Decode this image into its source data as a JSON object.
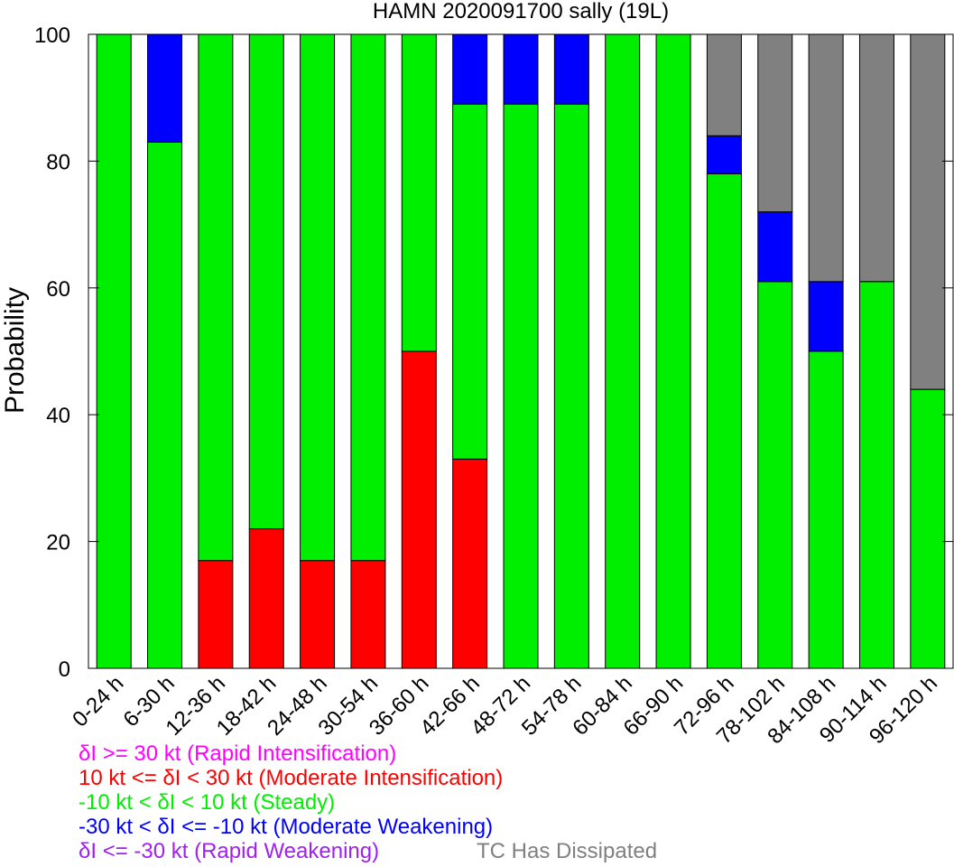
{
  "chart_data": {
    "type": "bar",
    "stacked": true,
    "title": "HAMN 2020091700 sally (19L)",
    "xlabel": "",
    "ylabel": "Probability",
    "ylim": [
      0,
      100
    ],
    "yticks": [
      0,
      20,
      40,
      60,
      80,
      100
    ],
    "grid": false,
    "categories": [
      "0-24 h",
      "6-30 h",
      "12-36 h",
      "18-42 h",
      "24-48 h",
      "30-54 h",
      "36-60 h",
      "42-66 h",
      "48-72 h",
      "54-78 h",
      "60-84 h",
      "66-90 h",
      "72-96 h",
      "78-102 h",
      "84-108 h",
      "90-114 h",
      "96-120 h"
    ],
    "series": [
      {
        "name": "δI >= 30 kt (Rapid Intensification)",
        "color": "#ff00ff",
        "values": [
          0,
          0,
          0,
          0,
          0,
          0,
          0,
          0,
          0,
          0,
          0,
          0,
          0,
          0,
          0,
          0,
          0
        ]
      },
      {
        "name": "10 kt <= δI < 30 kt (Moderate Intensification)",
        "color": "#ff0000",
        "values": [
          0,
          0,
          17,
          22,
          17,
          17,
          50,
          33,
          0,
          0,
          0,
          0,
          0,
          0,
          0,
          0,
          0
        ]
      },
      {
        "name": "-10 kt < δI < 10 kt (Steady)",
        "color": "#00ee00",
        "values": [
          100,
          83,
          83,
          78,
          83,
          83,
          50,
          56,
          89,
          89,
          100,
          100,
          78,
          61,
          50,
          61,
          44
        ]
      },
      {
        "name": "-30 kt < δI <= -10 kt (Moderate Weakening)",
        "color": "#0000ff",
        "values": [
          0,
          17,
          0,
          0,
          0,
          0,
          0,
          11,
          11,
          11,
          0,
          0,
          6,
          11,
          11,
          0,
          0
        ]
      },
      {
        "name": "δI <= -30 kt (Rapid Weakening)",
        "color": "#a020f0",
        "values": [
          0,
          0,
          0,
          0,
          0,
          0,
          0,
          0,
          0,
          0,
          0,
          0,
          0,
          0,
          0,
          0,
          0
        ]
      },
      {
        "name": "TC Has Dissipated",
        "color": "#808080",
        "values": [
          0,
          0,
          0,
          0,
          0,
          0,
          0,
          0,
          0,
          0,
          0,
          0,
          16,
          28,
          39,
          39,
          56
        ]
      }
    ],
    "legend_placement": "bottom-left"
  }
}
